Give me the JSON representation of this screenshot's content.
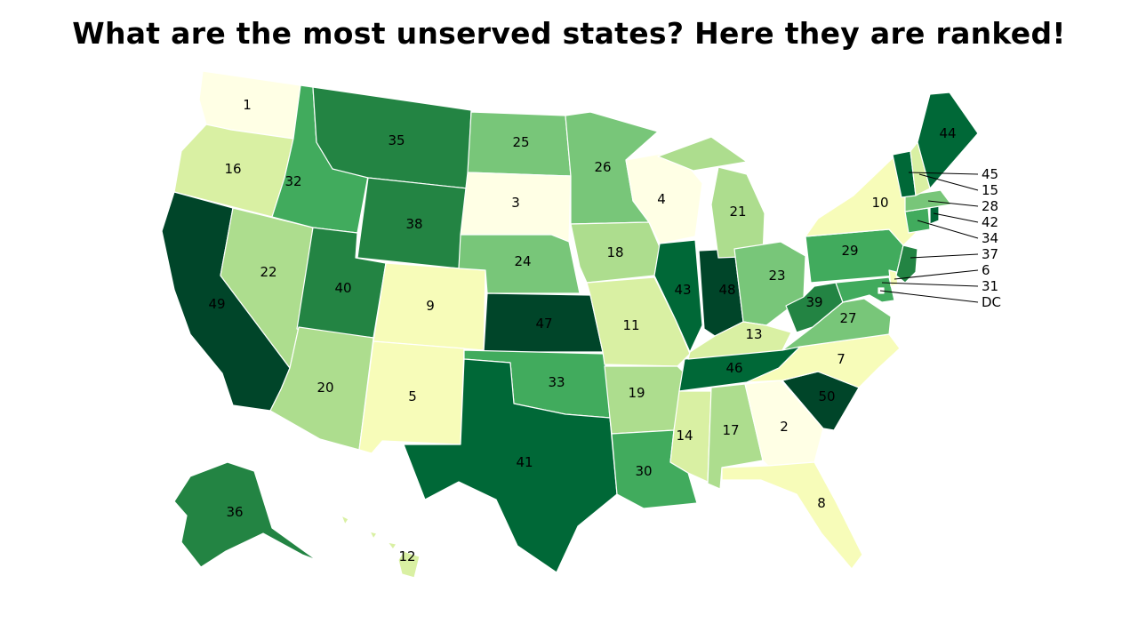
{
  "title": "What are the most unserved states? Here they are ranked!",
  "max_rank": 50,
  "states": [
    {
      "abbr": "WA",
      "rank": "1"
    },
    {
      "abbr": "GA",
      "rank": "2"
    },
    {
      "abbr": "SD",
      "rank": "3"
    },
    {
      "abbr": "WI",
      "rank": "4"
    },
    {
      "abbr": "NM",
      "rank": "5"
    },
    {
      "abbr": "DE",
      "rank": "6"
    },
    {
      "abbr": "NC",
      "rank": "7"
    },
    {
      "abbr": "FL",
      "rank": "8"
    },
    {
      "abbr": "CO",
      "rank": "9"
    },
    {
      "abbr": "NY",
      "rank": "10"
    },
    {
      "abbr": "MO",
      "rank": "11"
    },
    {
      "abbr": "HI",
      "rank": "12"
    },
    {
      "abbr": "KY",
      "rank": "13"
    },
    {
      "abbr": "MS",
      "rank": "14"
    },
    {
      "abbr": "NH",
      "rank": "15"
    },
    {
      "abbr": "OR",
      "rank": "16"
    },
    {
      "abbr": "AL",
      "rank": "17"
    },
    {
      "abbr": "IA",
      "rank": "18"
    },
    {
      "abbr": "AR",
      "rank": "19"
    },
    {
      "abbr": "AZ",
      "rank": "20"
    },
    {
      "abbr": "MI",
      "rank": "21"
    },
    {
      "abbr": "NV",
      "rank": "22"
    },
    {
      "abbr": "OH",
      "rank": "23"
    },
    {
      "abbr": "NE",
      "rank": "24"
    },
    {
      "abbr": "ND",
      "rank": "25"
    },
    {
      "abbr": "MN",
      "rank": "26"
    },
    {
      "abbr": "VA",
      "rank": "27"
    },
    {
      "abbr": "MA",
      "rank": "28"
    },
    {
      "abbr": "PA",
      "rank": "29"
    },
    {
      "abbr": "LA",
      "rank": "30"
    },
    {
      "abbr": "MD",
      "rank": "31"
    },
    {
      "abbr": "ID",
      "rank": "32"
    },
    {
      "abbr": "OK",
      "rank": "33"
    },
    {
      "abbr": "CT",
      "rank": "34"
    },
    {
      "abbr": "MT",
      "rank": "35"
    },
    {
      "abbr": "AK",
      "rank": "36"
    },
    {
      "abbr": "NJ",
      "rank": "37"
    },
    {
      "abbr": "WY",
      "rank": "38"
    },
    {
      "abbr": "WV",
      "rank": "39"
    },
    {
      "abbr": "UT",
      "rank": "40"
    },
    {
      "abbr": "TX",
      "rank": "41"
    },
    {
      "abbr": "RI",
      "rank": "42"
    },
    {
      "abbr": "IL",
      "rank": "43"
    },
    {
      "abbr": "ME",
      "rank": "44"
    },
    {
      "abbr": "VT",
      "rank": "45"
    },
    {
      "abbr": "TN",
      "rank": "46"
    },
    {
      "abbr": "KS",
      "rank": "47"
    },
    {
      "abbr": "IN",
      "rank": "48"
    },
    {
      "abbr": "CA",
      "rank": "49"
    },
    {
      "abbr": "SC",
      "rank": "50"
    },
    {
      "abbr": "DC",
      "rank": "DC"
    }
  ],
  "colors": {
    "scale": [
      "#ffffe5",
      "#f7fcb9",
      "#d9f0a3",
      "#addd8e",
      "#78c679",
      "#41ab5d",
      "#238443",
      "#006837",
      "#004529"
    ]
  }
}
